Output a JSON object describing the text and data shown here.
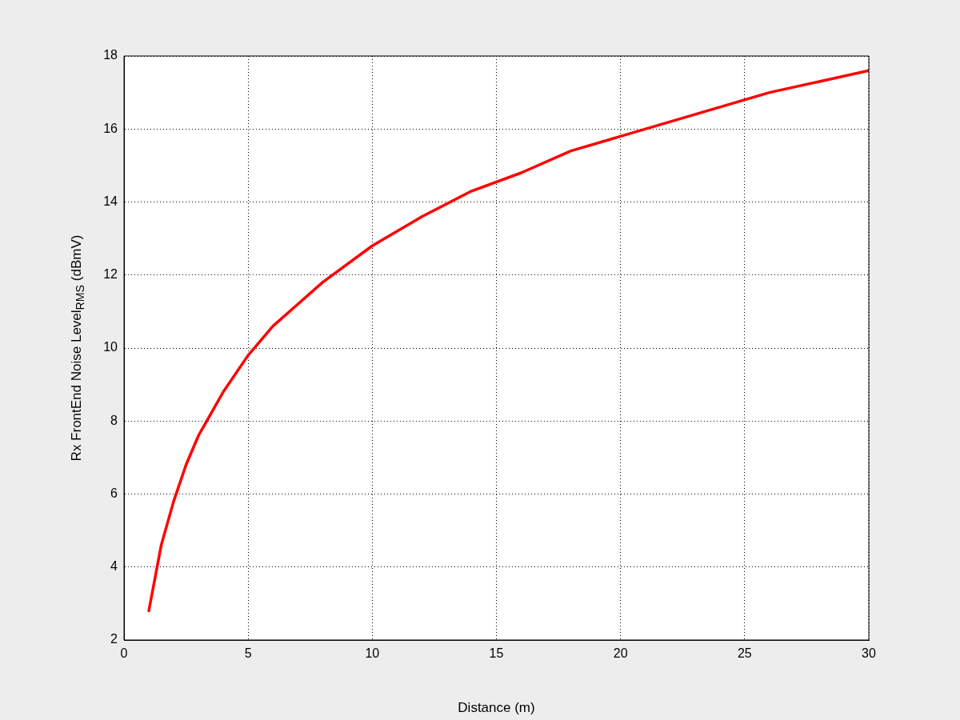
{
  "chart_data": {
    "type": "line",
    "xlabel": "Distance (m)",
    "ylabel": "Rx FrontEnd Noise Level$_{RMS}$ (dBmV)",
    "x": [
      1,
      1.5,
      2,
      2.5,
      3,
      4,
      5,
      6,
      7,
      8,
      10,
      12,
      14,
      16,
      18,
      20,
      22,
      24,
      26,
      28,
      30
    ],
    "series": [
      {
        "color": "#ff0000",
        "values": [
          2.8,
          4.6,
          5.8,
          6.8,
          7.6,
          8.8,
          9.8,
          10.6,
          11.2,
          11.8,
          12.8,
          13.6,
          14.3,
          14.8,
          15.4,
          15.8,
          16.2,
          16.6,
          17.0,
          17.3,
          17.6
        ]
      }
    ],
    "xlim": [
      0,
      30
    ],
    "xticks": [
      0,
      5,
      10,
      15,
      20,
      25,
      30
    ],
    "ylim": [
      2,
      18
    ],
    "yticks": [
      2,
      4,
      6,
      8,
      10,
      12,
      14,
      16,
      18
    ],
    "grid": true,
    "legend": false,
    "marker": "none",
    "line_style": "solid"
  }
}
